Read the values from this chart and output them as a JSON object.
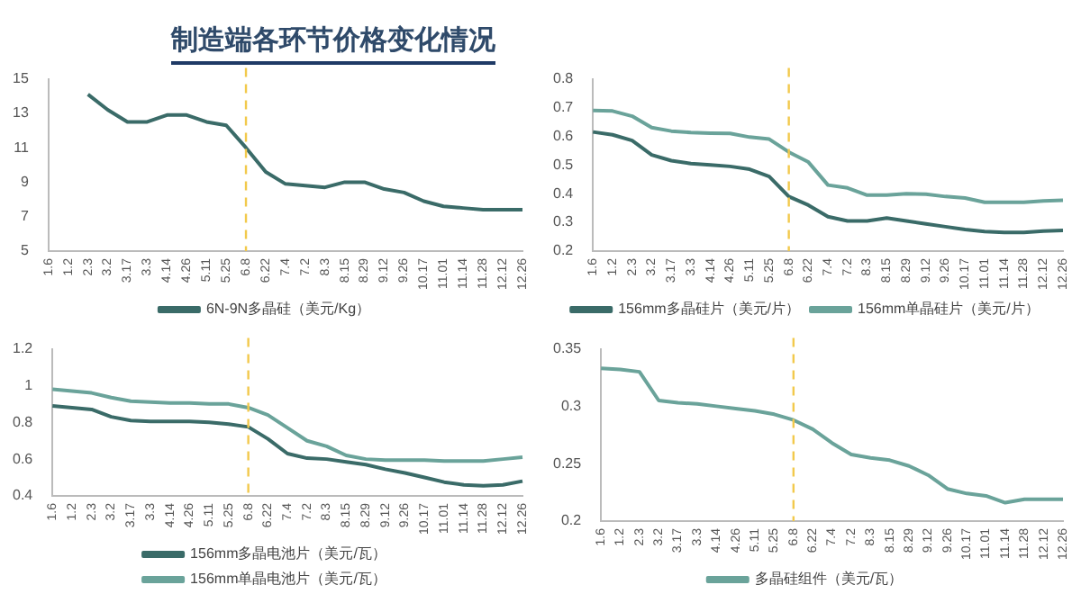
{
  "chart_data": [
    {
      "type": "line",
      "title": "制造端各环节价格变化情况",
      "categories": [
        "1.6",
        "1.2",
        "2.3",
        "3.2",
        "3.17",
        "3.3",
        "4.14",
        "4.26",
        "5.11",
        "5.25",
        "6.8",
        "6.22",
        "7.4",
        "7.2",
        "8.3",
        "8.15",
        "8.29",
        "9.12",
        "9.26",
        "10.17",
        "11.01",
        "11.14",
        "11.28",
        "12.12",
        "12.26"
      ],
      "series": [
        {
          "name": "6N-9N多晶硅（美元/Kg）",
          "color": "#3a6b68",
          "values": [
            null,
            null,
            14.1,
            13.2,
            12.5,
            12.5,
            12.9,
            12.9,
            12.5,
            12.3,
            11.0,
            9.6,
            8.9,
            8.8,
            8.7,
            9.0,
            9.0,
            8.6,
            8.4,
            7.9,
            7.6,
            7.5,
            7.4,
            7.4,
            7.4
          ]
        }
      ],
      "ylim": [
        5,
        15
      ],
      "yticks": [
        5,
        7,
        9,
        11,
        13,
        15
      ],
      "grid": false,
      "legend": "bottom",
      "marker": "none",
      "ref_lines": [
        {
          "axis": "x",
          "value": "6.8",
          "color": "#f2c94c",
          "line_style": "dashed"
        }
      ]
    },
    {
      "type": "line",
      "categories": [
        "1.6",
        "1.2",
        "2.3",
        "3.2",
        "3.17",
        "3.3",
        "4.14",
        "4.26",
        "5.11",
        "5.25",
        "6.8",
        "6.22",
        "7.4",
        "7.2",
        "8.3",
        "8.15",
        "8.29",
        "9.12",
        "9.26",
        "10.17",
        "11.01",
        "11.14",
        "11.28",
        "12.12",
        "12.26"
      ],
      "series": [
        {
          "name": "156mm多晶硅片（美元/片）",
          "color": "#3a6b68",
          "values": [
            0.615,
            0.605,
            0.585,
            0.535,
            0.515,
            0.505,
            0.5,
            0.495,
            0.485,
            0.46,
            0.39,
            0.36,
            0.32,
            0.305,
            0.305,
            0.315,
            0.305,
            0.295,
            0.285,
            0.275,
            0.268,
            0.265,
            0.265,
            0.27,
            0.272
          ]
        },
        {
          "name": "156mm单晶硅片（美元/片）",
          "color": "#6aa39a",
          "values": [
            0.69,
            0.688,
            0.67,
            0.63,
            0.618,
            0.613,
            0.611,
            0.61,
            0.597,
            0.59,
            0.545,
            0.51,
            0.43,
            0.42,
            0.395,
            0.395,
            0.4,
            0.398,
            0.39,
            0.385,
            0.37,
            0.37,
            0.37,
            0.375,
            0.377
          ]
        }
      ],
      "ylim": [
        0.2,
        0.8
      ],
      "yticks": [
        0.2,
        0.3,
        0.4,
        0.5,
        0.6,
        0.7,
        0.8
      ],
      "grid": false,
      "legend": "bottom",
      "marker": "none",
      "ref_lines": [
        {
          "axis": "x",
          "value": "6.8",
          "color": "#f2c94c",
          "line_style": "dashed"
        }
      ]
    },
    {
      "type": "line",
      "categories": [
        "1.6",
        "1.2",
        "2.3",
        "3.2",
        "3.17",
        "3.3",
        "4.14",
        "4.26",
        "5.11",
        "5.25",
        "6.8",
        "6.22",
        "7.4",
        "7.2",
        "8.3",
        "8.15",
        "8.29",
        "9.12",
        "9.26",
        "10.17",
        "11.01",
        "11.14",
        "11.28",
        "12.12",
        "12.26"
      ],
      "series": [
        {
          "name": "156mm多晶电池片（美元/瓦）",
          "color": "#3a6b68",
          "values": [
            0.89,
            0.88,
            0.87,
            0.83,
            0.81,
            0.805,
            0.805,
            0.805,
            0.8,
            0.79,
            0.775,
            0.71,
            0.63,
            0.605,
            0.6,
            0.585,
            0.57,
            0.545,
            0.525,
            0.5,
            0.475,
            0.46,
            0.455,
            0.46,
            0.48
          ]
        },
        {
          "name": "156mm单晶电池片（美元/瓦）",
          "color": "#6aa39a",
          "values": [
            0.98,
            0.97,
            0.96,
            0.935,
            0.915,
            0.91,
            0.905,
            0.905,
            0.9,
            0.9,
            0.88,
            0.84,
            0.77,
            0.7,
            0.67,
            0.62,
            0.6,
            0.595,
            0.595,
            0.595,
            0.59,
            0.59,
            0.59,
            0.6,
            0.61
          ]
        }
      ],
      "ylim": [
        0.4,
        1.2
      ],
      "yticks": [
        0.4,
        0.6,
        0.8,
        1,
        1.2
      ],
      "grid": false,
      "legend": "bottom",
      "marker": "none",
      "ref_lines": [
        {
          "axis": "x",
          "value": "6.8",
          "color": "#f2c94c",
          "line_style": "dashed"
        }
      ]
    },
    {
      "type": "line",
      "categories": [
        "1.6",
        "1.2",
        "2.3",
        "3.2",
        "3.17",
        "3.3",
        "4.14",
        "4.26",
        "5.11",
        "5.25",
        "6.8",
        "6.22",
        "7.4",
        "7.2",
        "8.3",
        "8.15",
        "8.29",
        "9.12",
        "9.26",
        "10.17",
        "11.01",
        "11.14",
        "11.28",
        "12.12",
        "12.26"
      ],
      "series": [
        {
          "name": "多晶硅组件（美元/瓦）",
          "color": "#6aa39a",
          "values": [
            0.333,
            0.332,
            0.33,
            0.305,
            0.303,
            0.302,
            0.3,
            0.298,
            0.296,
            0.293,
            0.288,
            0.28,
            0.268,
            0.258,
            0.255,
            0.253,
            0.248,
            0.24,
            0.228,
            0.224,
            0.222,
            0.216,
            0.219,
            0.219,
            0.219
          ]
        }
      ],
      "ylim": [
        0.2,
        0.35
      ],
      "yticks": [
        0.2,
        0.25,
        0.3,
        0.35
      ],
      "grid": false,
      "legend": "bottom",
      "marker": "none",
      "ref_lines": [
        {
          "axis": "x",
          "value": "6.8",
          "color": "#f2c94c",
          "line_style": "dashed"
        }
      ]
    }
  ]
}
